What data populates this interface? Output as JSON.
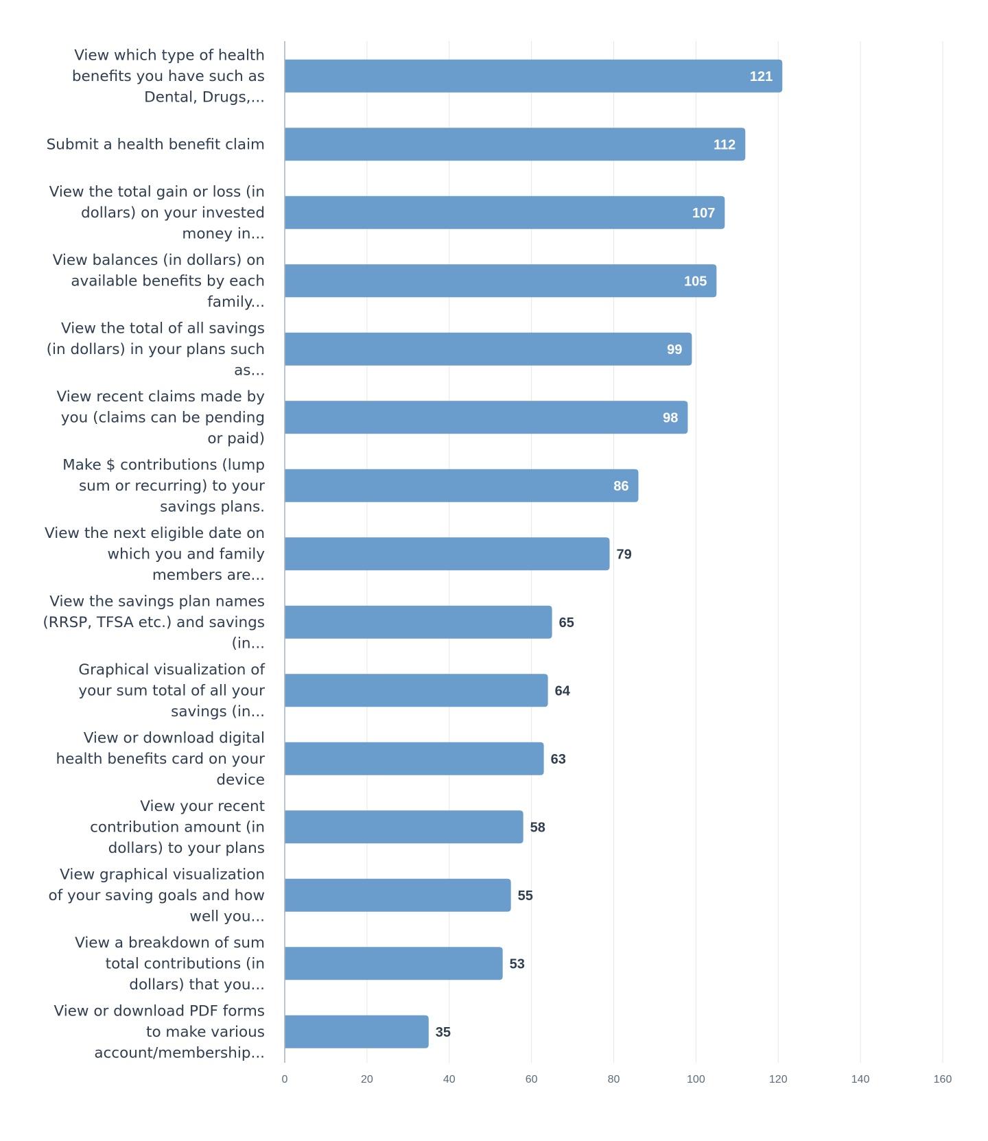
{
  "colors": {
    "bar": "#6a9ccc",
    "grid": "#e3e6ea",
    "axis": "#a9b1ba",
    "text": "#2e3e50",
    "value_inside": "#ffffff",
    "value_outside": "#2e3e50"
  },
  "chart_data": {
    "type": "bar",
    "orientation": "horizontal",
    "title": "",
    "xlabel": "",
    "ylabel": "",
    "xlim": [
      0,
      160
    ],
    "grid": true,
    "x_ticks": [
      "0",
      "20",
      "40",
      "60",
      "80",
      "100",
      "120",
      "140",
      "160"
    ],
    "categories": [
      [
        "View which type of health",
        "benefits you have such as",
        "Dental, Drugs,..."
      ],
      [
        "Submit a health benefit claim"
      ],
      [
        "View the total gain or loss (in",
        "dollars) on your invested",
        "money in..."
      ],
      [
        "View balances (in dollars) on",
        "available benefits by each",
        "family..."
      ],
      [
        "View the total of all savings",
        "(in dollars) in your plans such",
        "as..."
      ],
      [
        "View recent claims made by",
        "you (claims can be pending",
        "or paid)"
      ],
      [
        "Make $ contributions (lump",
        "sum or recurring) to your",
        "savings plans."
      ],
      [
        "View the next eligible date on",
        "which you and family",
        "members are..."
      ],
      [
        "View the savings plan names",
        "(RRSP, TFSA etc.) and savings",
        "(in..."
      ],
      [
        "Graphical visualization of",
        "your sum total of all your",
        "savings (in..."
      ],
      [
        "View or download digital",
        "health benefits card on your",
        "device"
      ],
      [
        "View your recent",
        "contribution amount (in",
        "dollars) to your plans"
      ],
      [
        "View graphical visualization",
        "of your saving goals and how",
        "well you..."
      ],
      [
        "View a breakdown of sum",
        "total contributions (in",
        "dollars) that you..."
      ],
      [
        "View or download PDF forms",
        "to make various",
        "account/membership..."
      ]
    ],
    "values": [
      121,
      112,
      107,
      105,
      99,
      98,
      86,
      79,
      65,
      64,
      63,
      58,
      55,
      53,
      35
    ],
    "data_labels": [
      "121",
      "112",
      "107",
      "105",
      "99",
      "98",
      "86",
      "79",
      "65",
      "64",
      "63",
      "58",
      "55",
      "53",
      "35"
    ]
  }
}
